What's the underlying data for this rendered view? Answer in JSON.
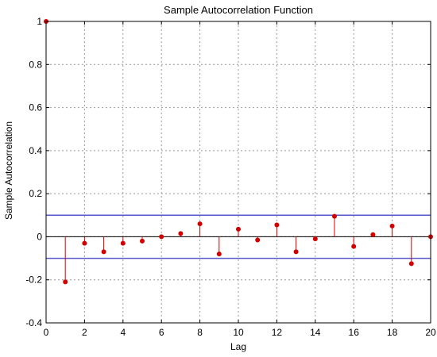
{
  "chart_data": {
    "type": "stem",
    "title": "Sample Autocorrelation Function",
    "xlabel": "Lag",
    "ylabel": "Sample Autocorrelation",
    "xlim": [
      0,
      20
    ],
    "ylim": [
      -0.4,
      1
    ],
    "xticks": [
      "0",
      "2",
      "4",
      "6",
      "8",
      "10",
      "12",
      "14",
      "16",
      "18",
      "20"
    ],
    "yticks": [
      "-0.4",
      "-0.2",
      "0",
      "0.2",
      "0.4",
      "0.6",
      "0.8",
      "1"
    ],
    "grid": true,
    "x": [
      0,
      1,
      2,
      3,
      4,
      5,
      6,
      7,
      8,
      9,
      10,
      11,
      12,
      13,
      14,
      15,
      16,
      17,
      18,
      19,
      20
    ],
    "values": [
      1.0,
      -0.21,
      -0.03,
      -0.07,
      -0.03,
      -0.02,
      0.0,
      0.015,
      0.06,
      -0.08,
      0.035,
      -0.015,
      0.055,
      -0.07,
      -0.01,
      0.095,
      -0.045,
      0.01,
      0.05,
      -0.125,
      0.0
    ],
    "confidence_bounds": [
      0.1,
      -0.1
    ],
    "colors": {
      "stem": "#d40000",
      "bounds": "#5555cc",
      "grid": "#999999"
    }
  }
}
